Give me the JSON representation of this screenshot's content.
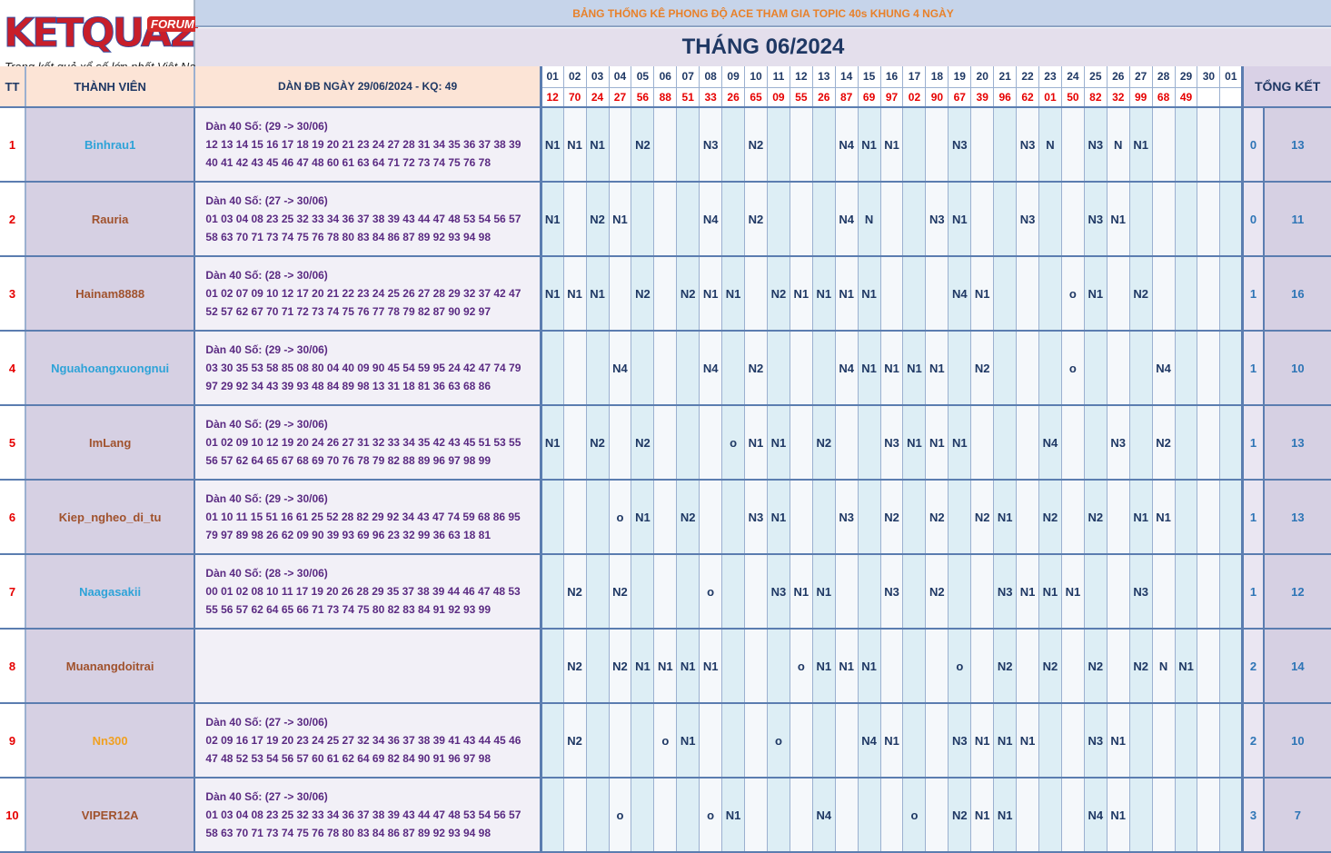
{
  "logo": {
    "brand": "KETQUA2",
    "badge": "FORUM",
    "tagline": "Trang kết quả xổ số lớn nhất Việt Nam"
  },
  "header": {
    "banner": "BẢNG THỐNG KÊ PHONG ĐỘ ACE THAM GIA TOPIC 40s KHUNG 4 NGÀY",
    "month_title": "THÁNG 06/2024"
  },
  "columns": {
    "tt": "TT",
    "member": "THÀNH VIÊN",
    "dan": "DÀN ĐB NGÀY 29/06/2024 - KQ: 49",
    "summary": "TỔNG KẾT"
  },
  "days": [
    "01",
    "02",
    "03",
    "04",
    "05",
    "06",
    "07",
    "08",
    "09",
    "10",
    "11",
    "12",
    "13",
    "14",
    "15",
    "16",
    "17",
    "18",
    "19",
    "20",
    "21",
    "22",
    "23",
    "24",
    "25",
    "26",
    "27",
    "28",
    "29",
    "30",
    "01"
  ],
  "results": [
    "12",
    "70",
    "24",
    "27",
    "56",
    "88",
    "51",
    "33",
    "26",
    "65",
    "09",
    "55",
    "26",
    "87",
    "69",
    "97",
    "02",
    "90",
    "67",
    "39",
    "96",
    "62",
    "01",
    "50",
    "82",
    "32",
    "99",
    "68",
    "49",
    "",
    ""
  ],
  "rows": [
    {
      "tt": "1",
      "name": "Binhrau1",
      "color": "#2ea3d8",
      "dan1": "Dàn 40 Số: (29 -> 30/06)",
      "dan2": "12 13 14 15 16 17 18 19 20 21 23 24 27 28 31 34 35 36 37 38 39",
      "dan3": "40 41 42 43 45 46 47 48 60 61 63 64 71 72 73 74 75 76 78",
      "marks": [
        "N1",
        "N1",
        "N1",
        "",
        "N2",
        "",
        "",
        "N3",
        "",
        "N2",
        "",
        "",
        "",
        "N4",
        "N1",
        "N1",
        "",
        "",
        "N3",
        "",
        "",
        "N3",
        "N",
        "",
        "N3",
        "N",
        "N1",
        "",
        "",
        "",
        ""
      ],
      "s1": "0",
      "s2": "13"
    },
    {
      "tt": "2",
      "name": "Rauria",
      "color": "#a0522d",
      "dan1": "Dàn 40 Số: (27 -> 30/06)",
      "dan2": "01 03 04 08 23 25 32 33 34 36 37 38 39 43 44 47 48 53 54 56 57",
      "dan3": "58 63 70 71 73 74 75 76 78 80 83 84 86 87 89 92 93 94 98",
      "marks": [
        "N1",
        "",
        "N2",
        "N1",
        "",
        "",
        "",
        "N4",
        "",
        "N2",
        "",
        "",
        "",
        "N4",
        "N",
        "",
        "",
        "N3",
        "N1",
        "",
        "",
        "N3",
        "",
        "",
        "N3",
        "N1",
        "",
        "",
        "",
        "",
        ""
      ],
      "s1": "0",
      "s2": "11"
    },
    {
      "tt": "3",
      "name": "Hainam8888",
      "color": "#a0522d",
      "dan1": "Dàn 40 Số: (28 -> 30/06)",
      "dan2": "01 02 07 09 10 12 17 20 21 22 23 24 25 26 27 28 29 32 37 42 47",
      "dan3": "52 57 62 67 70 71 72 73 74 75 76 77 78 79 82 87 90 92 97",
      "marks": [
        "N1",
        "N1",
        "N1",
        "",
        "N2",
        "",
        "N2",
        "N1",
        "N1",
        "",
        "N2",
        "N1",
        "N1",
        "N1",
        "N1",
        "",
        "",
        "",
        "N4",
        "N1",
        "",
        "",
        "",
        "o",
        "N1",
        "",
        "N2",
        "",
        "",
        "",
        ""
      ],
      "s1": "1",
      "s2": "16"
    },
    {
      "tt": "4",
      "name": "Nguahoangxuongnui",
      "color": "#2ea3d8",
      "dan1": "Dàn 40 Số: (29 -> 30/06)",
      "dan2": "03 30 35 53 58 85 08 80 04 40 09 90 45 54 59 95 24 42 47 74 79",
      "dan3": "97 29 92 34 43 39 93 48 84 89 98 13 31 18 81 36 63 68 86",
      "marks": [
        "",
        "",
        "",
        "N4",
        "",
        "",
        "",
        "N4",
        "",
        "N2",
        "",
        "",
        "",
        "N4",
        "N1",
        "N1",
        "N1",
        "N1",
        "",
        "N2",
        "",
        "",
        "",
        "o",
        "",
        "",
        "",
        "N4",
        "",
        "",
        ""
      ],
      "s1": "1",
      "s2": "10"
    },
    {
      "tt": "5",
      "name": "ImLang",
      "color": "#a0522d",
      "dan1": "Dàn 40 Số: (29 -> 30/06)",
      "dan2": "01 02 09 10 12 19 20 24 26 27 31 32 33 34 35 42 43 45 51 53 55",
      "dan3": "56 57 62 64 65 67 68 69 70 76 78 79 82 88 89 96 97 98 99",
      "marks": [
        "N1",
        "",
        "N2",
        "",
        "N2",
        "",
        "",
        "",
        "o",
        "N1",
        "N1",
        "",
        "N2",
        "",
        "",
        "N3",
        "N1",
        "N1",
        "N1",
        "",
        "",
        "",
        "N4",
        "",
        "",
        "N3",
        "",
        "N2",
        "",
        "",
        ""
      ],
      "s1": "1",
      "s2": "13"
    },
    {
      "tt": "6",
      "name": "Kiep_ngheo_di_tu",
      "color": "#a0522d",
      "dan1": "Dàn 40 Số: (29 -> 30/06)",
      "dan2": "01 10 11 15 51 16 61 25 52 28 82 29 92 34 43 47 74 59 68 86 95",
      "dan3": "79 97 89 98 26 62 09 90 39 93 69 96 23 32 99 36 63 18 81",
      "marks": [
        "",
        "",
        "",
        "o",
        "N1",
        "",
        "N2",
        "",
        "",
        "N3",
        "N1",
        "",
        "",
        "N3",
        "",
        "N2",
        "",
        "N2",
        "",
        "N2",
        "N1",
        "",
        "N2",
        "",
        "N2",
        "",
        "N1",
        "N1",
        "",
        "",
        ""
      ],
      "s1": "1",
      "s2": "13"
    },
    {
      "tt": "7",
      "name": "Naagasakii",
      "color": "#2ea3d8",
      "dan1": "Dàn 40 Số: (28 -> 30/06)",
      "dan2": "00 01 02 08 10 11 17 19 20 26 28 29 35 37 38 39 44 46 47 48 53",
      "dan3": "55 56 57 62 64 65 66 71 73 74 75 80 82 83 84 91 92 93 99",
      "marks": [
        "",
        "N2",
        "",
        "N2",
        "",
        "",
        "",
        "o",
        "",
        "",
        "N3",
        "N1",
        "N1",
        "",
        "",
        "N3",
        "",
        "N2",
        "",
        "",
        "N3",
        "N1",
        "N1",
        "N1",
        "",
        "",
        "N3",
        "",
        "",
        "",
        ""
      ],
      "s1": "1",
      "s2": "12"
    },
    {
      "tt": "8",
      "name": "Muanangdoitrai",
      "color": "#a0522d",
      "dan1": "",
      "dan2": "",
      "dan3": "",
      "marks": [
        "",
        "N2",
        "",
        "N2",
        "N1",
        "N1",
        "N1",
        "N1",
        "",
        "",
        "",
        "o",
        "N1",
        "N1",
        "N1",
        "",
        "",
        "",
        "o",
        "",
        "N2",
        "",
        "N2",
        "",
        "N2",
        "",
        "N2",
        "N",
        "N1",
        "",
        ""
      ],
      "s1": "2",
      "s2": "14"
    },
    {
      "tt": "9",
      "name": "Nn300",
      "color": "#f0a020",
      "dan1": "Dàn 40 Số: (27 -> 30/06)",
      "dan2": "02 09 16 17 19 20 23 24 25 27 32 34 36 37 38 39 41 43 44 45 46",
      "dan3": "47 48 52 53 54 56 57 60 61 62 64 69 82 84 90 91 96 97 98",
      "marks": [
        "",
        "N2",
        "",
        "",
        "",
        "o",
        "N1",
        "",
        "",
        "",
        "o",
        "",
        "",
        "",
        "N4",
        "N1",
        "",
        "",
        "N3",
        "N1",
        "N1",
        "N1",
        "",
        "",
        "N3",
        "N1",
        "",
        "",
        "",
        "",
        ""
      ],
      "s1": "2",
      "s2": "10"
    },
    {
      "tt": "10",
      "name": "VIPER12A",
      "color": "#a0522d",
      "dan1": "Dàn 40 Số: (27 -> 30/06)",
      "dan2": "01 03 04 08 23 25 32 33 34 36 37 38 39 43 44 47 48 53 54 56 57",
      "dan3": "58 63 70 71 73 74 75 76 78 80 83 84 86 87 89 92 93 94 98",
      "marks": [
        "",
        "",
        "",
        "o",
        "",
        "",
        "",
        "o",
        "N1",
        "",
        "",
        "",
        "N4",
        "",
        "",
        "",
        "o",
        "",
        "N2",
        "N1",
        "N1",
        "",
        "",
        "",
        "N4",
        "N1",
        "",
        "",
        "",
        "",
        ""
      ],
      "s1": "3",
      "s2": "7"
    }
  ]
}
